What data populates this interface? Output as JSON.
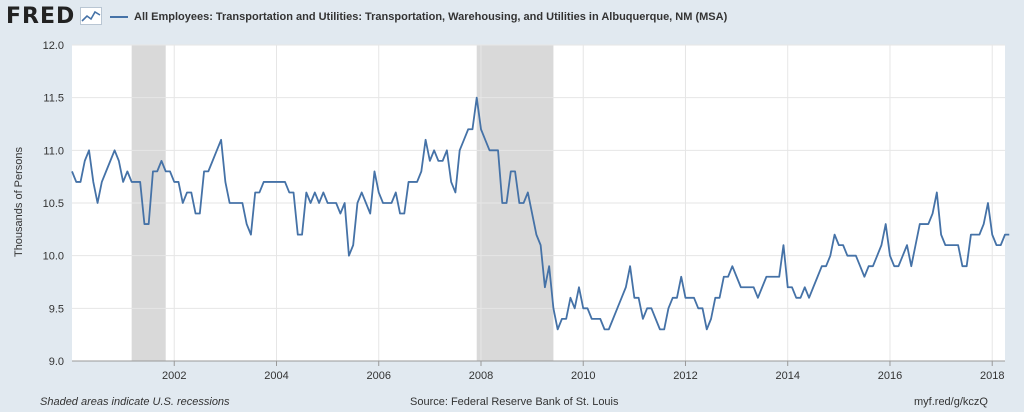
{
  "header": {
    "logo": "FRED",
    "logo_icon": "chart-line-icon",
    "series_title": "All Employees: Transportation and Utilities: Transportation, Warehousing, and Utilities in Albuquerque, NM (MSA)"
  },
  "footer": {
    "recession_note": "Shaded areas indicate U.S. recessions",
    "source": "Source: Federal Reserve Bank of St. Louis",
    "short_url": "myf.red/g/kczQ"
  },
  "colors": {
    "line": "#4572a7",
    "recession": "#d9d9d9",
    "plot_background": "#ffffff",
    "page_background": "#e1e9f0"
  },
  "chart_data": {
    "type": "line",
    "title": "",
    "xlabel": "",
    "ylabel": "Thousands of Persons",
    "ylim": [
      9.0,
      12.0
    ],
    "xlim": [
      "2000-01",
      "2018-04"
    ],
    "grid": true,
    "y_ticks": [
      "9.0",
      "9.5",
      "10.0",
      "10.5",
      "11.0",
      "11.5",
      "12.0"
    ],
    "x_ticks": [
      "2002",
      "2004",
      "2006",
      "2008",
      "2010",
      "2012",
      "2014",
      "2016",
      "2018"
    ],
    "recessions": [
      {
        "start": "2001-03",
        "end": "2001-11"
      },
      {
        "start": "2007-12",
        "end": "2009-06"
      }
    ],
    "series": [
      {
        "name": "All Employees: Transportation and Utilities: Transportation, Warehousing, and Utilities in Albuquerque, NM (MSA)",
        "x_start": "2000-01",
        "frequency": "monthly",
        "values": [
          10.8,
          10.7,
          10.7,
          10.9,
          11.0,
          10.7,
          10.5,
          10.7,
          10.8,
          10.9,
          11.0,
          10.9,
          10.7,
          10.8,
          10.7,
          10.7,
          10.7,
          10.3,
          10.3,
          10.8,
          10.8,
          10.9,
          10.8,
          10.8,
          10.7,
          10.7,
          10.5,
          10.6,
          10.6,
          10.4,
          10.4,
          10.8,
          10.8,
          10.9,
          11.0,
          11.1,
          10.7,
          10.5,
          10.5,
          10.5,
          10.5,
          10.3,
          10.2,
          10.6,
          10.6,
          10.7,
          10.7,
          10.7,
          10.7,
          10.7,
          10.7,
          10.6,
          10.6,
          10.2,
          10.2,
          10.6,
          10.5,
          10.6,
          10.5,
          10.6,
          10.5,
          10.5,
          10.5,
          10.4,
          10.5,
          10.0,
          10.1,
          10.5,
          10.6,
          10.5,
          10.4,
          10.8,
          10.6,
          10.5,
          10.5,
          10.5,
          10.6,
          10.4,
          10.4,
          10.7,
          10.7,
          10.7,
          10.8,
          11.1,
          10.9,
          11.0,
          10.9,
          10.9,
          11.0,
          10.7,
          10.6,
          11.0,
          11.1,
          11.2,
          11.2,
          11.5,
          11.2,
          11.1,
          11.0,
          11.0,
          11.0,
          10.5,
          10.5,
          10.8,
          10.8,
          10.5,
          10.5,
          10.6,
          10.4,
          10.2,
          10.1,
          9.7,
          9.9,
          9.5,
          9.3,
          9.4,
          9.4,
          9.6,
          9.5,
          9.7,
          9.5,
          9.5,
          9.4,
          9.4,
          9.4,
          9.3,
          9.3,
          9.4,
          9.5,
          9.6,
          9.7,
          9.9,
          9.6,
          9.6,
          9.4,
          9.5,
          9.5,
          9.4,
          9.3,
          9.3,
          9.5,
          9.6,
          9.6,
          9.8,
          9.6,
          9.6,
          9.6,
          9.5,
          9.5,
          9.3,
          9.4,
          9.6,
          9.6,
          9.8,
          9.8,
          9.9,
          9.8,
          9.7,
          9.7,
          9.7,
          9.7,
          9.6,
          9.7,
          9.8,
          9.8,
          9.8,
          9.8,
          10.1,
          9.7,
          9.7,
          9.6,
          9.6,
          9.7,
          9.6,
          9.7,
          9.8,
          9.9,
          9.9,
          10.0,
          10.2,
          10.1,
          10.1,
          10.0,
          10.0,
          10.0,
          9.9,
          9.8,
          9.9,
          9.9,
          10.0,
          10.1,
          10.3,
          10.0,
          9.9,
          9.9,
          10.0,
          10.1,
          9.9,
          10.1,
          10.3,
          10.3,
          10.3,
          10.4,
          10.6,
          10.2,
          10.1,
          10.1,
          10.1,
          10.1,
          9.9,
          9.9,
          10.2,
          10.2,
          10.2,
          10.3,
          10.5,
          10.2,
          10.1,
          10.1,
          10.2,
          10.2
        ]
      }
    ]
  }
}
